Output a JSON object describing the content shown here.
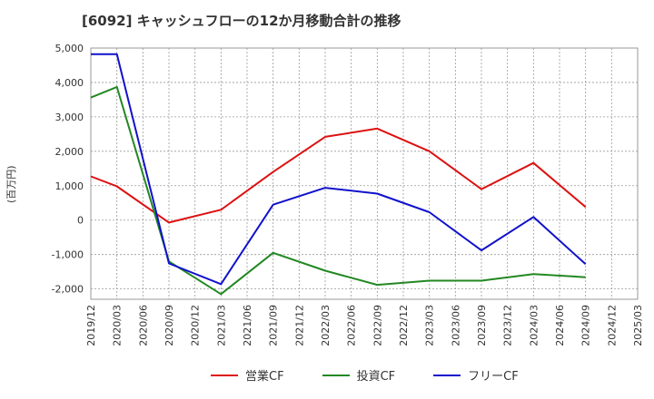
{
  "chart_data": {
    "type": "line",
    "title": "[6092]  キャッシュフローの12か月移動合計の推移",
    "ylabel": "(百万円)",
    "xlabel": "",
    "ylim": [
      -2300,
      5000
    ],
    "yticks": [
      5000,
      4000,
      3000,
      2000,
      1000,
      0,
      -1000,
      -2000
    ],
    "ytick_labels": [
      "5,000",
      "4,000",
      "3,000",
      "2,000",
      "1,000",
      "0",
      "-1,000",
      "-2,000"
    ],
    "categories": [
      "2019/12",
      "2020/03",
      "2020/06",
      "2020/09",
      "2020/12",
      "2021/03",
      "2021/06",
      "2021/09",
      "2021/12",
      "2022/03",
      "2022/06",
      "2022/09",
      "2022/12",
      "2023/03",
      "2023/06",
      "2023/09",
      "2023/12",
      "2024/03",
      "2024/06",
      "2024/09",
      "2024/12",
      "2025/03"
    ],
    "series": [
      {
        "name": "営業CF",
        "color": "#dd1111",
        "values": [
          1270,
          980,
          null,
          -70,
          null,
          300,
          null,
          1400,
          null,
          2420,
          null,
          2660,
          null,
          2000,
          null,
          900,
          null,
          1660,
          null,
          380,
          null,
          null
        ]
      },
      {
        "name": "投資CF",
        "color": "#228822",
        "values": [
          3560,
          3870,
          null,
          -1200,
          null,
          -2150,
          null,
          -950,
          null,
          -1470,
          null,
          -1880,
          null,
          -1760,
          null,
          -1760,
          null,
          -1570,
          null,
          -1660,
          null,
          null
        ]
      },
      {
        "name": "フリーCF",
        "color": "#1111cc",
        "values": [
          4820,
          4820,
          null,
          -1260,
          null,
          -1860,
          null,
          450,
          null,
          940,
          null,
          770,
          null,
          230,
          null,
          -880,
          null,
          90,
          null,
          -1280,
          null,
          null
        ]
      }
    ],
    "legend_position": "bottom",
    "grid": true
  }
}
